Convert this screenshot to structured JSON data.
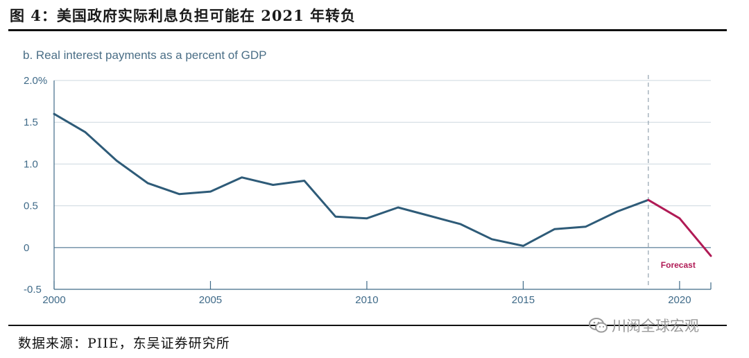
{
  "figure_title": "图 4：美国政府实际利息负担可能在 2021 年转负",
  "source": "数据来源：PIIE，东吴证券研究所",
  "watermark": "川阅全球宏观",
  "colors": {
    "history": "#2e5b78",
    "forecast": "#b01a55",
    "grid": "#cdd7df",
    "zero": "#6b8ba3",
    "axis": "#3f6a88"
  },
  "chart_data": {
    "type": "line",
    "title": "b. Real interest payments as a percent of GDP",
    "xlabel": "",
    "ylabel": "",
    "xlim": [
      2000,
      2021
    ],
    "ylim": [
      -0.5,
      2.0
    ],
    "x_ticks": [
      2000,
      2005,
      2010,
      2015,
      2020
    ],
    "y_ticks": [
      -0.5,
      0,
      0.5,
      1.0,
      1.5,
      2.0
    ],
    "y_tick_labels": [
      "-0.5",
      "0",
      "0.5",
      "1.0",
      "1.5",
      "2.0%"
    ],
    "grid": true,
    "forecast_start": 2019,
    "annotation": "Forecast",
    "series": [
      {
        "segment": "history",
        "x": [
          2000,
          2001,
          2002,
          2003,
          2004,
          2005,
          2006,
          2007,
          2008,
          2009,
          2010,
          2011,
          2012,
          2013,
          2014,
          2015,
          2016,
          2017,
          2018,
          2019
        ],
        "values": [
          1.6,
          1.38,
          1.04,
          0.77,
          0.64,
          0.67,
          0.84,
          0.75,
          0.8,
          0.37,
          0.35,
          0.48,
          0.38,
          0.28,
          0.1,
          0.02,
          0.22,
          0.25,
          0.43,
          0.57
        ]
      },
      {
        "segment": "forecast",
        "x": [
          2019,
          2020,
          2021
        ],
        "values": [
          0.57,
          0.35,
          -0.1
        ]
      }
    ]
  }
}
